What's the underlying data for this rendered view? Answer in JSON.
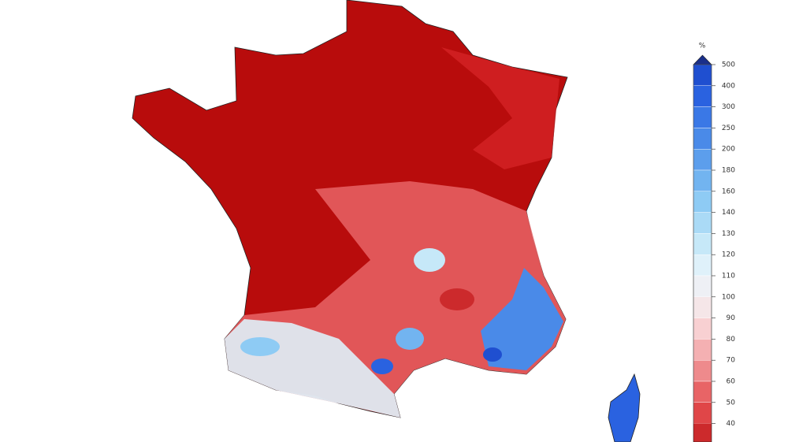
{
  "legend": {
    "unit": "%",
    "ticks": [
      500,
      400,
      300,
      250,
      200,
      180,
      160,
      140,
      130,
      120,
      110,
      100,
      90,
      80,
      70,
      60,
      50,
      40
    ],
    "colors": [
      "#1a2f8a",
      "#1f4fd0",
      "#2a62e0",
      "#3a78e6",
      "#4a8ae8",
      "#5c9eec",
      "#72b4f0",
      "#8ecbf4",
      "#aadaf6",
      "#c6e8f8",
      "#dff1fa",
      "#eef0f5",
      "#f5e6e8",
      "#f8d0d2",
      "#f4b0b2",
      "#ee8a8c",
      "#e86466",
      "#e04648",
      "#cc2a2c"
    ]
  }
}
